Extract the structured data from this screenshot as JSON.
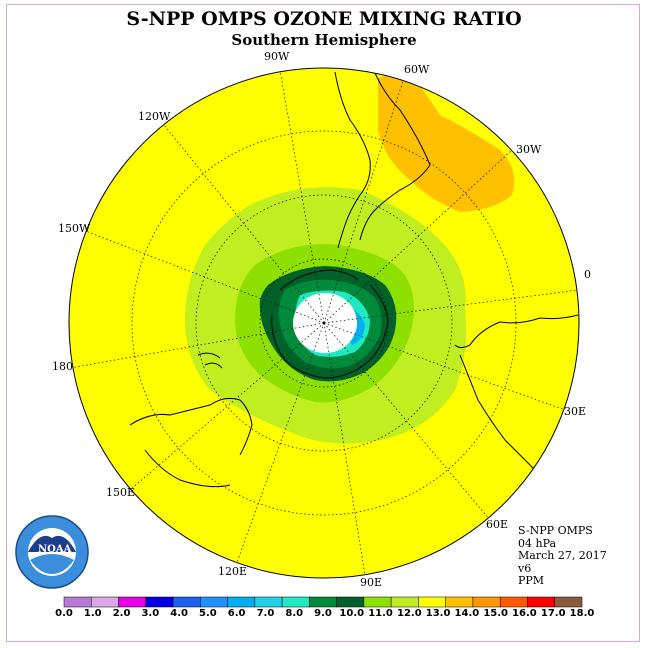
{
  "title": "S-NPP OMPS OZONE MIXING RATIO",
  "subtitle": "Southern Hemisphere",
  "longitude_labels": [
    "90W",
    "60W",
    "30W",
    "0",
    "30E",
    "60E",
    "90E",
    "120E",
    "150E",
    "180",
    "150W",
    "120W"
  ],
  "info": {
    "instrument": "S-NPP OMPS",
    "level": "04 hPa",
    "date": "March 27, 2017",
    "version": "v6",
    "units": "PPM"
  },
  "logo": {
    "text": "NOAA"
  },
  "colorbar": {
    "ticks": [
      "0.0",
      "1.0",
      "2.0",
      "3.0",
      "4.0",
      "5.0",
      "6.0",
      "7.0",
      "8.0",
      "9.0",
      "10.0",
      "11.0",
      "12.0",
      "13.0",
      "14.0",
      "15.0",
      "16.0",
      "17.0",
      "18.0"
    ],
    "colors": [
      "#b87ad8",
      "#d8a8e8",
      "#e800e8",
      "#0000e0",
      "#1e60f0",
      "#1e90ff",
      "#00b0f0",
      "#20d0e8",
      "#20e8c0",
      "#008a3c",
      "#006228",
      "#8ee000",
      "#c0ee20",
      "#ffff00",
      "#ffc000",
      "#ff9800",
      "#ff5a00",
      "#ff0000",
      "#8a5a3c"
    ]
  },
  "colors": {
    "background": "#ffff00",
    "high_band": "#ffc000",
    "mid_band": "#c0ee20",
    "low_band": "#8ee000",
    "dark_green": "#006228",
    "green": "#008a3c",
    "cyan": "#20e8c0",
    "blue": "#00b0f0"
  }
}
